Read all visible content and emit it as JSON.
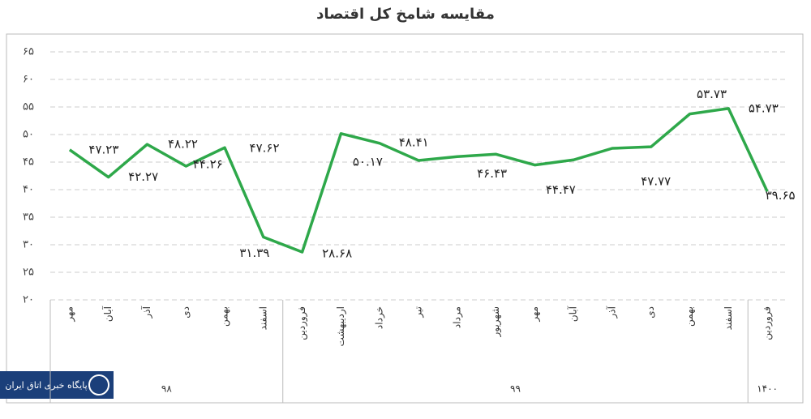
{
  "chart_data": {
    "type": "line",
    "title": "مقایسه شامخ کل اقتصاد",
    "categories": [
      "مهر",
      "آبان",
      "آذر",
      "دی",
      "بهمن",
      "اسفند",
      "فروردین",
      "اردیبهشت",
      "خرداد",
      "تیر",
      "مرداد",
      "شهریور",
      "مهر",
      "آبان",
      "آذر",
      "دی",
      "بهمن",
      "اسفند",
      "فروردین"
    ],
    "groups": [
      {
        "label": "۹۸",
        "count": 6
      },
      {
        "label": "۹۹",
        "count": 12
      },
      {
        "label": "۱۴۰۰",
        "count": 1
      }
    ],
    "series": [
      {
        "name": "شامخ کل اقتصاد",
        "color": "#2ea84a",
        "values": [
          47.23,
          42.27,
          48.22,
          44.26,
          47.62,
          31.39,
          28.68,
          50.17,
          48.41,
          45.3,
          46.0,
          46.43,
          44.47,
          45.4,
          47.5,
          47.77,
          53.73,
          54.73,
          39.65
        ],
        "value_labels": [
          "۴۷.۲۳",
          "۴۲.۲۷",
          "۴۸.۲۲",
          "۴۴.۲۶",
          "۴۷.۶۲",
          "۳۱.۳۹",
          "۲۸.۶۸",
          "۵۰.۱۷",
          "۴۸.۴۱",
          null,
          null,
          "۴۶.۴۳",
          "۴۴.۴۷",
          null,
          null,
          "۴۷.۷۷",
          "۵۳.۷۳",
          "۵۴.۷۳",
          "۳۹.۶۵"
        ]
      }
    ],
    "ylim": [
      20,
      65
    ],
    "yticks": [
      {
        "value": 20,
        "label": "۲۰"
      },
      {
        "value": 25,
        "label": "۲۵"
      },
      {
        "value": 30,
        "label": "۳۰"
      },
      {
        "value": 35,
        "label": "۳۵"
      },
      {
        "value": 40,
        "label": "۴۰"
      },
      {
        "value": 45,
        "label": "۴۵"
      },
      {
        "value": 50,
        "label": "۵۰"
      },
      {
        "value": 55,
        "label": "۵۵"
      },
      {
        "value": 60,
        "label": "۶۰"
      },
      {
        "value": 65,
        "label": "۶۵"
      }
    ],
    "grid": true
  },
  "watermark": "پایگاه خبری اتاق ایران"
}
